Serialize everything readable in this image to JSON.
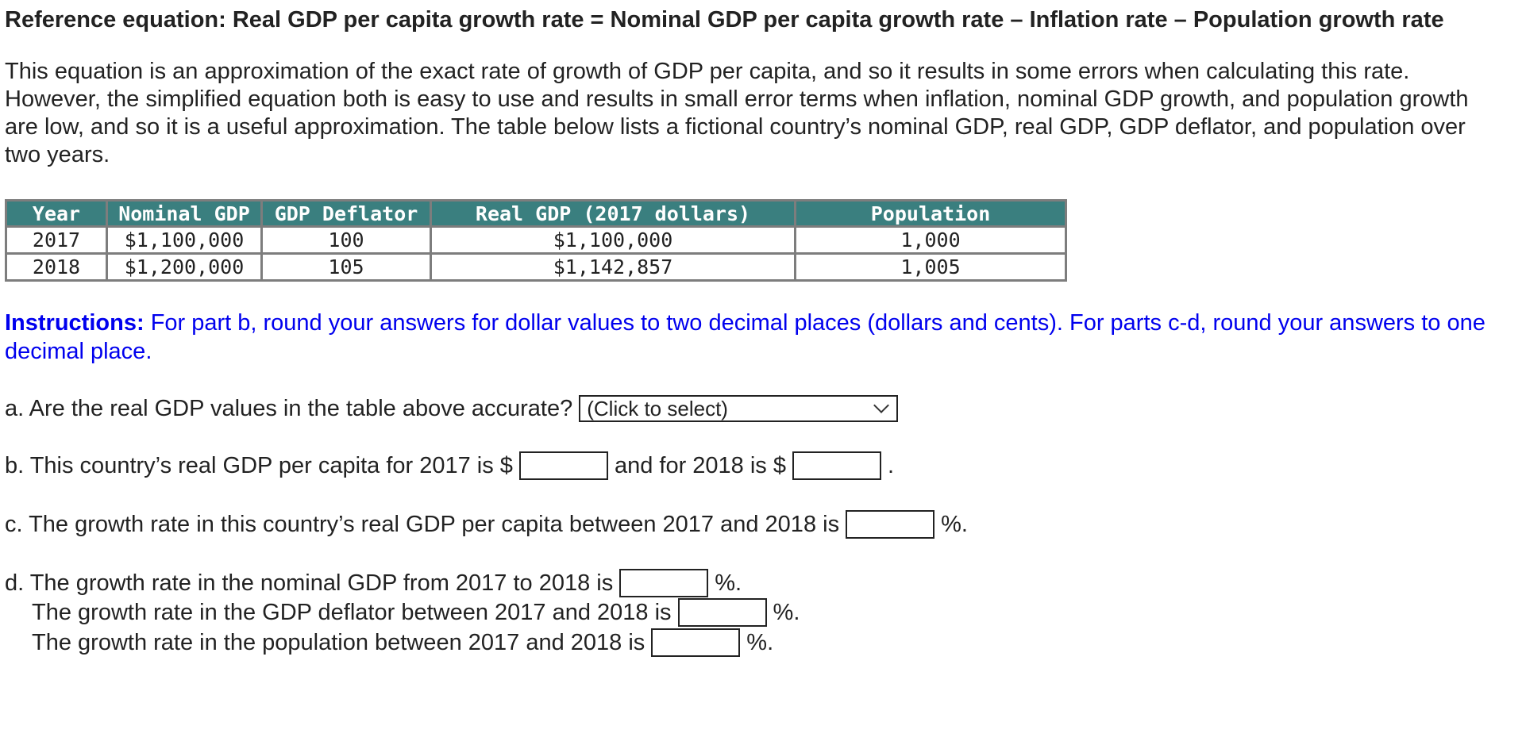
{
  "reference": "Reference equation: Real GDP per capita growth rate = Nominal GDP per capita growth rate – Inflation rate – Population growth rate",
  "intro": "This equation is an approximation of the exact rate of growth of GDP per capita, and so it results in some errors when calculating this rate. However, the simplified equation both is easy to use and results in small error terms when inflation, nominal GDP growth, and population growth are low, and so it is a useful approximation. The table below lists a fictional country’s nominal GDP, real GDP, GDP deflator, and population over two years.",
  "table": {
    "headers": [
      "Year",
      "Nominal GDP",
      "GDP Deflator",
      "Real GDP (2017 dollars)",
      "Population"
    ],
    "rows": [
      [
        "2017",
        "$1,100,000",
        "100",
        "$1,100,000",
        "1,000"
      ],
      [
        "2018",
        "$1,200,000",
        "105",
        "$1,142,857",
        "1,005"
      ]
    ]
  },
  "instructions": {
    "label": "Instructions:",
    "text": "For part b, round your answers for dollar values to two decimal places (dollars and cents). For parts c-d, round your answers to one decimal place."
  },
  "questions": {
    "a": {
      "text": "a. Are the real GDP values in the table above accurate?",
      "select_value": "(Click to select)"
    },
    "b": {
      "text_pre": "b. This country’s real GDP per capita for 2017 is $",
      "text_mid": "and for 2018 is $",
      "text_post": ".",
      "value_2017": "",
      "value_2018": ""
    },
    "c": {
      "text": "c. The growth rate in this country’s real GDP per capita between 2017 and 2018 is",
      "unit": "%.",
      "value": ""
    },
    "d": {
      "line1": "d. The growth rate in the nominal GDP from 2017 to 2018 is",
      "line2": "The growth rate in the GDP deflator between 2017 and 2018 is",
      "line3": "The growth rate in the population between 2017 and 2018 is",
      "unit": "%.",
      "value1": "",
      "value2": "",
      "value3": ""
    }
  }
}
